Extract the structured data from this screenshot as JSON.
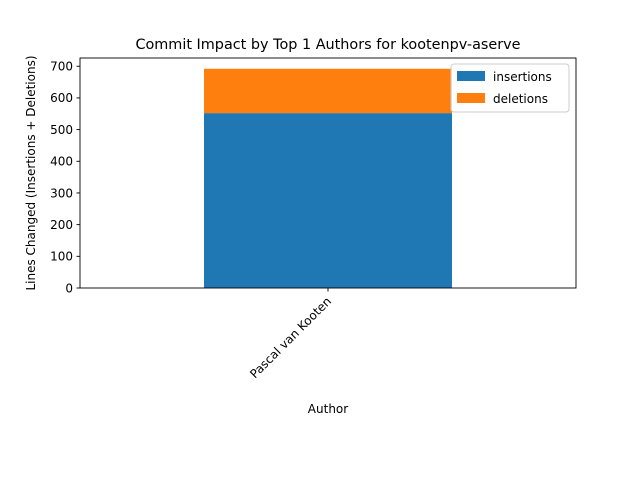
{
  "chart_data": {
    "type": "bar",
    "stacked": true,
    "title": "Commit Impact by Top 1 Authors for kootenpv-aserve",
    "xlabel": "Author",
    "ylabel": "Lines Changed (Insertions + Deletions)",
    "categories": [
      "Pascal van Kooten"
    ],
    "series": [
      {
        "name": "insertions",
        "values": [
          552
        ],
        "color": "#1f77b4"
      },
      {
        "name": "deletions",
        "values": [
          140
        ],
        "color": "#ff7f0e"
      }
    ],
    "ylim": [
      0,
      726
    ],
    "yticks": [
      0,
      100,
      200,
      300,
      400,
      500,
      600,
      700
    ],
    "legend": "top-right",
    "grid": false
  }
}
